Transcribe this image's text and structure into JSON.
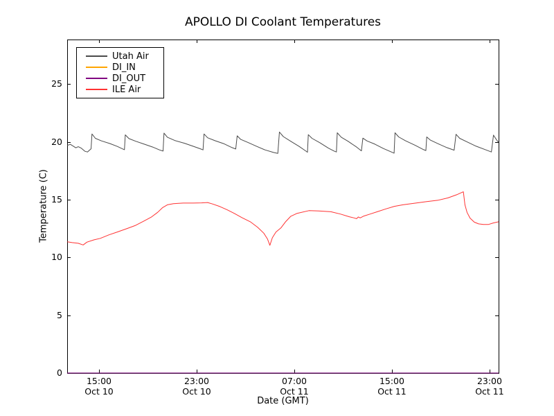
{
  "chart_data": {
    "type": "line",
    "title": "APOLLO DI Coolant Temperatures",
    "xlabel": "Date (GMT)",
    "ylabel": "Temperature (C)",
    "x_unit": "hours since Oct 10 00:00 GMT",
    "xlim": [
      12.39,
      47.74
    ],
    "ylim": [
      0,
      28.85
    ],
    "grid": false,
    "legend_position": "upper left",
    "frame_color": "#000000",
    "yticks": [
      {
        "value": 0,
        "label": "0"
      },
      {
        "value": 5,
        "label": "5"
      },
      {
        "value": 10,
        "label": "10"
      },
      {
        "value": 15,
        "label": "15"
      },
      {
        "value": 20,
        "label": "20"
      },
      {
        "value": 25,
        "label": "25"
      }
    ],
    "xticks": [
      {
        "value": 15,
        "time": "15:00",
        "date": "Oct 10"
      },
      {
        "value": 23,
        "time": "23:00",
        "date": "Oct 10"
      },
      {
        "value": 31,
        "time": "07:00",
        "date": "Oct 11"
      },
      {
        "value": 39,
        "time": "15:00",
        "date": "Oct 11"
      },
      {
        "value": 47,
        "time": "23:00",
        "date": "Oct 11"
      }
    ],
    "series": [
      {
        "name": "Utah Air",
        "color": "#4a4a4a",
        "points": [
          [
            12.4,
            19.7
          ],
          [
            12.65,
            19.78
          ],
          [
            12.9,
            19.62
          ],
          [
            13.1,
            19.48
          ],
          [
            13.3,
            19.58
          ],
          [
            13.55,
            19.45
          ],
          [
            13.85,
            19.18
          ],
          [
            14.05,
            19.12
          ],
          [
            14.35,
            19.4
          ],
          [
            14.42,
            20.68
          ],
          [
            14.7,
            20.3
          ],
          [
            15.2,
            20.08
          ],
          [
            15.9,
            19.85
          ],
          [
            16.5,
            19.6
          ],
          [
            16.95,
            19.38
          ],
          [
            17.08,
            19.32
          ],
          [
            17.15,
            20.6
          ],
          [
            17.45,
            20.28
          ],
          [
            18.0,
            20.05
          ],
          [
            18.7,
            19.8
          ],
          [
            19.4,
            19.55
          ],
          [
            19.95,
            19.3
          ],
          [
            20.25,
            19.2
          ],
          [
            20.32,
            20.75
          ],
          [
            20.6,
            20.4
          ],
          [
            21.2,
            20.12
          ],
          [
            22.0,
            19.88
          ],
          [
            22.7,
            19.62
          ],
          [
            23.3,
            19.4
          ],
          [
            23.52,
            19.3
          ],
          [
            23.6,
            20.68
          ],
          [
            23.9,
            20.35
          ],
          [
            24.5,
            20.1
          ],
          [
            25.2,
            19.85
          ],
          [
            25.9,
            19.5
          ],
          [
            26.2,
            19.38
          ],
          [
            26.32,
            20.52
          ],
          [
            26.6,
            20.22
          ],
          [
            27.2,
            19.95
          ],
          [
            27.9,
            19.62
          ],
          [
            28.6,
            19.3
          ],
          [
            29.3,
            19.08
          ],
          [
            29.65,
            19.0
          ],
          [
            29.78,
            20.85
          ],
          [
            30.1,
            20.45
          ],
          [
            30.7,
            20.05
          ],
          [
            31.4,
            19.6
          ],
          [
            31.95,
            19.2
          ],
          [
            32.08,
            19.1
          ],
          [
            32.15,
            20.62
          ],
          [
            32.45,
            20.3
          ],
          [
            33.1,
            19.92
          ],
          [
            33.8,
            19.45
          ],
          [
            34.3,
            19.18
          ],
          [
            34.45,
            19.12
          ],
          [
            34.52,
            20.78
          ],
          [
            34.85,
            20.4
          ],
          [
            35.4,
            20.05
          ],
          [
            36.1,
            19.55
          ],
          [
            36.5,
            19.22
          ],
          [
            36.62,
            20.32
          ],
          [
            36.95,
            20.08
          ],
          [
            37.6,
            19.8
          ],
          [
            38.3,
            19.42
          ],
          [
            39.0,
            19.1
          ],
          [
            39.18,
            19.02
          ],
          [
            39.25,
            20.78
          ],
          [
            39.55,
            20.42
          ],
          [
            40.1,
            20.1
          ],
          [
            40.9,
            19.7
          ],
          [
            41.6,
            19.32
          ],
          [
            41.78,
            19.25
          ],
          [
            41.85,
            20.42
          ],
          [
            42.15,
            20.15
          ],
          [
            42.75,
            19.85
          ],
          [
            43.5,
            19.5
          ],
          [
            44.1,
            19.28
          ],
          [
            44.25,
            20.65
          ],
          [
            44.55,
            20.3
          ],
          [
            45.1,
            20.02
          ],
          [
            45.9,
            19.62
          ],
          [
            46.7,
            19.3
          ],
          [
            47.15,
            19.12
          ],
          [
            47.32,
            20.58
          ],
          [
            47.55,
            20.2
          ],
          [
            47.74,
            19.95
          ]
        ]
      },
      {
        "name": "DI_IN",
        "color": "#ffa500",
        "points": [
          [
            12.39,
            0
          ],
          [
            47.74,
            0
          ]
        ]
      },
      {
        "name": "DI_OUT",
        "color": "#800080",
        "points": [
          [
            12.39,
            0
          ],
          [
            47.74,
            0
          ]
        ]
      },
      {
        "name": "ILE Air",
        "color": "#ff3232",
        "points": [
          [
            12.4,
            11.35
          ],
          [
            12.8,
            11.28
          ],
          [
            13.3,
            11.22
          ],
          [
            13.7,
            11.08
          ],
          [
            14.0,
            11.32
          ],
          [
            14.6,
            11.52
          ],
          [
            15.1,
            11.65
          ],
          [
            15.8,
            11.95
          ],
          [
            16.5,
            12.2
          ],
          [
            17.3,
            12.5
          ],
          [
            17.95,
            12.75
          ],
          [
            18.6,
            13.1
          ],
          [
            19.3,
            13.5
          ],
          [
            19.8,
            13.9
          ],
          [
            20.2,
            14.3
          ],
          [
            20.6,
            14.55
          ],
          [
            21.1,
            14.65
          ],
          [
            21.9,
            14.7
          ],
          [
            22.7,
            14.7
          ],
          [
            23.4,
            14.72
          ],
          [
            23.9,
            14.75
          ],
          [
            24.3,
            14.62
          ],
          [
            24.9,
            14.4
          ],
          [
            25.5,
            14.12
          ],
          [
            26.1,
            13.8
          ],
          [
            26.7,
            13.45
          ],
          [
            27.4,
            13.08
          ],
          [
            28.0,
            12.6
          ],
          [
            28.5,
            12.1
          ],
          [
            28.8,
            11.6
          ],
          [
            29.0,
            11.05
          ],
          [
            29.2,
            11.7
          ],
          [
            29.5,
            12.2
          ],
          [
            29.9,
            12.55
          ],
          [
            30.3,
            13.1
          ],
          [
            30.7,
            13.55
          ],
          [
            31.2,
            13.8
          ],
          [
            32.2,
            14.05
          ],
          [
            33.0,
            14.02
          ],
          [
            34.0,
            13.95
          ],
          [
            34.8,
            13.75
          ],
          [
            35.5,
            13.52
          ],
          [
            35.9,
            13.42
          ],
          [
            36.1,
            13.35
          ],
          [
            36.25,
            13.5
          ],
          [
            36.4,
            13.42
          ],
          [
            36.7,
            13.58
          ],
          [
            37.2,
            13.75
          ],
          [
            37.8,
            13.95
          ],
          [
            38.5,
            14.2
          ],
          [
            39.2,
            14.42
          ],
          [
            39.9,
            14.55
          ],
          [
            40.8,
            14.68
          ],
          [
            41.8,
            14.82
          ],
          [
            42.8,
            14.95
          ],
          [
            43.6,
            15.15
          ],
          [
            44.3,
            15.42
          ],
          [
            44.85,
            15.68
          ],
          [
            44.98,
            14.55
          ],
          [
            45.15,
            13.9
          ],
          [
            45.4,
            13.4
          ],
          [
            45.75,
            13.05
          ],
          [
            46.1,
            12.9
          ],
          [
            46.5,
            12.85
          ],
          [
            46.9,
            12.85
          ],
          [
            47.3,
            12.98
          ],
          [
            47.74,
            13.08
          ]
        ]
      }
    ]
  }
}
